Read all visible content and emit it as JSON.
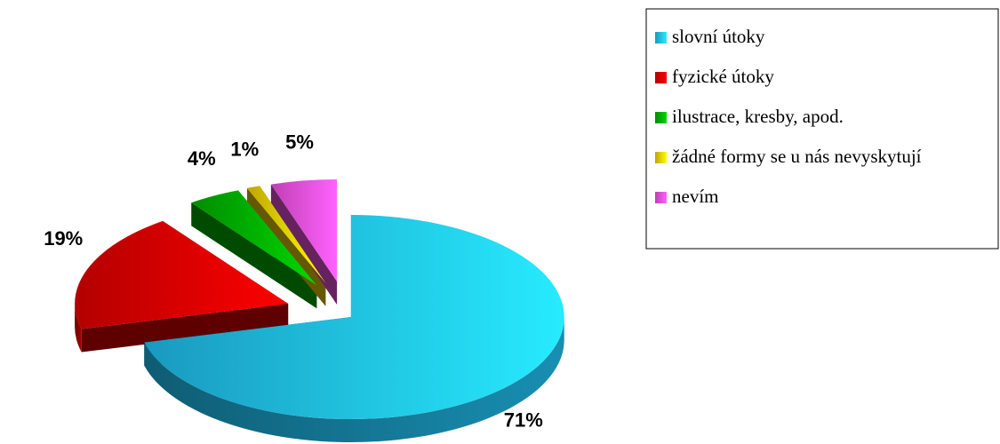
{
  "chart_data": {
    "type": "pie",
    "categories": [
      "slovní útoky",
      "fyzické útoky",
      "ilustrace, kresby, apod.",
      "žádné formy se u nás nevyskytují",
      "nevím"
    ],
    "values": [
      71,
      19,
      4,
      1,
      5
    ],
    "value_labels": [
      "71%",
      "19%",
      "4%",
      "1%",
      "5%"
    ],
    "colors": [
      "#22ccff",
      "#ee0000",
      "#00bb00",
      "#ffdd00",
      "#ff55ee"
    ],
    "legend": "right"
  }
}
